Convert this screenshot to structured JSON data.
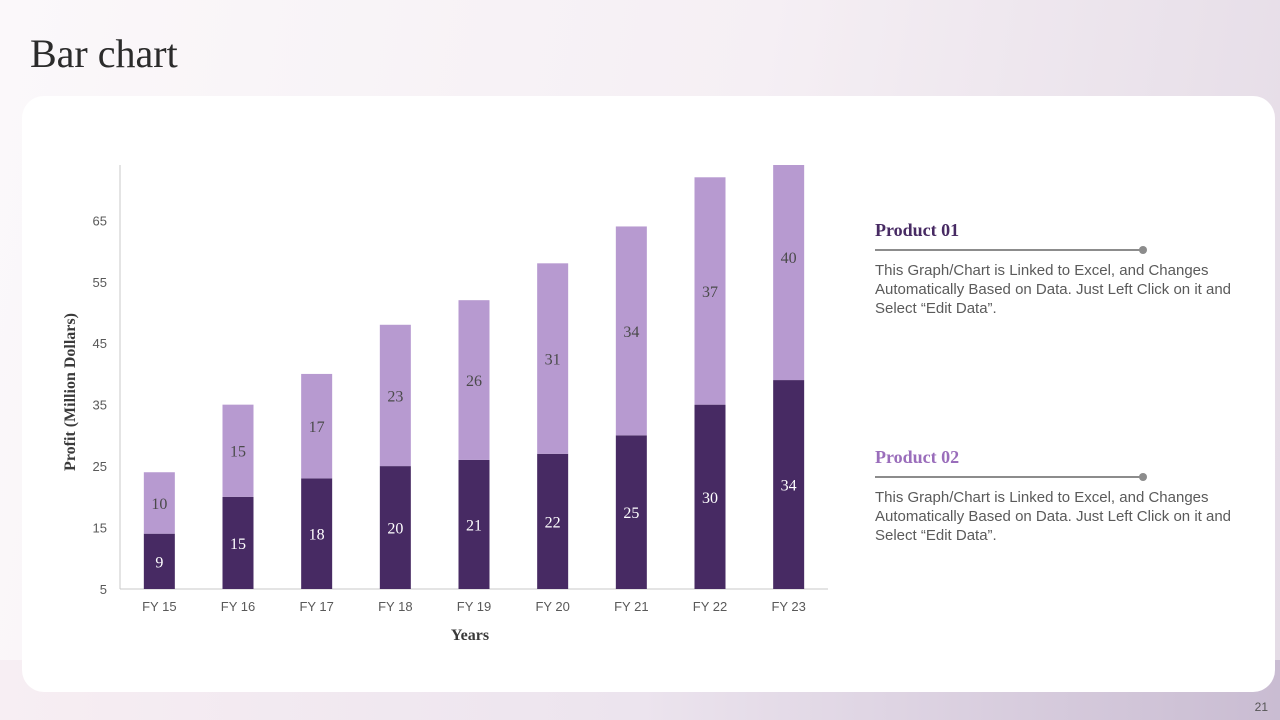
{
  "slide": {
    "title": "Bar chart",
    "page_number": "21"
  },
  "colors": {
    "product_01": "#472a63",
    "product_02": "#b79ad0",
    "axis": "#c8c8c8",
    "tick_text": "#595959"
  },
  "chart_data": {
    "type": "bar",
    "stacked": true,
    "categories": [
      "FY 15",
      "FY 16",
      "FY 17",
      "FY 18",
      "FY 19",
      "FY 20",
      "FY 21",
      "FY 22",
      "FY 23"
    ],
    "series": [
      {
        "name": "Product 01",
        "values": [
          9,
          15,
          18,
          20,
          21,
          22,
          25,
          30,
          34
        ]
      },
      {
        "name": "Product 02",
        "values": [
          10,
          15,
          17,
          23,
          26,
          31,
          34,
          37,
          40
        ]
      }
    ],
    "xlabel": "Years",
    "ylabel": "Profit  (Million Dollars)",
    "ylim": [
      5,
      74
    ],
    "yticks": [
      5,
      15,
      25,
      35,
      45,
      55,
      65
    ],
    "legend": "right"
  },
  "products": [
    {
      "title": "Product 01",
      "color": "#472a63",
      "description": "This Graph/Chart is Linked to Excel, and Changes Automatically Based on Data. Just Left Click on it and Select “Edit Data”."
    },
    {
      "title": "Product 02",
      "color": "#9a6dbb",
      "description": "This Graph/Chart is Linked to Excel, and Changes Automatically Based on Data. Just Left Click on it and Select “Edit Data”."
    }
  ]
}
